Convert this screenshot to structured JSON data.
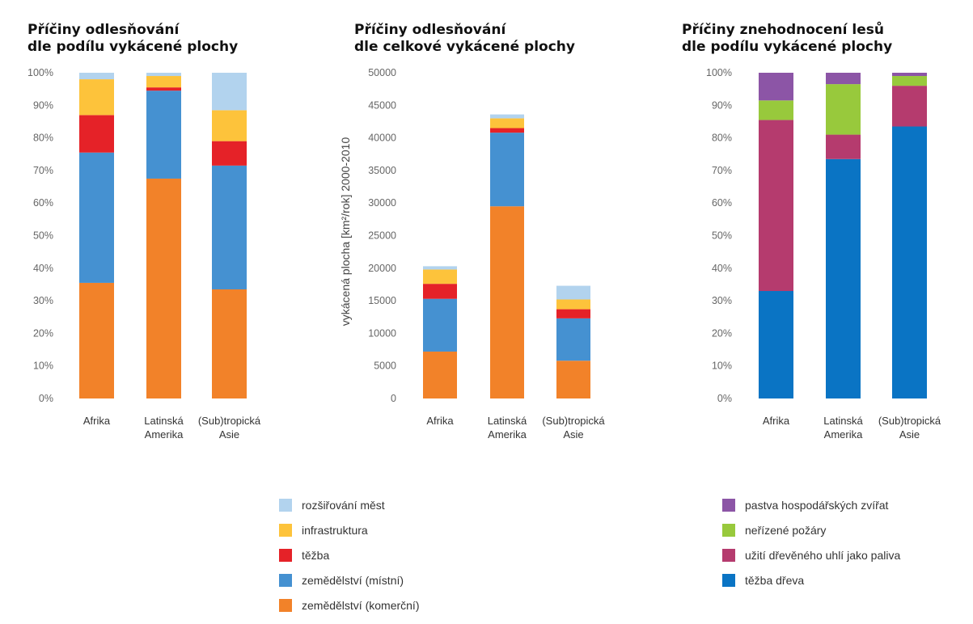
{
  "chart_data": [
    {
      "type": "bar",
      "stacked": true,
      "title": [
        "Příčiny odlesňování",
        "dle podílu vykácené plochy"
      ],
      "ylabel": "",
      "ylim": [
        0,
        100
      ],
      "yticks": [
        "0%",
        "10%",
        "20%",
        "30%",
        "40%",
        "50%",
        "60%",
        "70%",
        "80%",
        "90%",
        "100%"
      ],
      "categories": [
        [
          "Afrika"
        ],
        [
          "Latinská",
          "Amerika"
        ],
        [
          "(Sub)tropická",
          "Asie"
        ]
      ],
      "series": [
        {
          "name": "zemědělství (komerční)",
          "color": "#f28229",
          "values": [
            35.5,
            67.5,
            33.5
          ]
        },
        {
          "name": "zemědělství (místní)",
          "color": "#4591d1",
          "values": [
            40,
            27,
            38
          ]
        },
        {
          "name": "těžba",
          "color": "#e52228",
          "values": [
            11.5,
            1,
            7.5
          ]
        },
        {
          "name": "infrastruktura",
          "color": "#fdc33b",
          "values": [
            11,
            3.5,
            9.5
          ]
        },
        {
          "name": "rozšiřování měst",
          "color": "#b2d3ee",
          "values": [
            2,
            1,
            11.5
          ]
        }
      ]
    },
    {
      "type": "bar",
      "stacked": true,
      "title": [
        "Příčiny odlesňování",
        "dle celkové vykácené plochy"
      ],
      "ylabel": "vykácená plocha [km²/rok] 2000-2010",
      "ylim": [
        0,
        50000
      ],
      "yticks": [
        "0",
        "5000",
        "10000",
        "15000",
        "20000",
        "25000",
        "30000",
        "35000",
        "40000",
        "45000",
        "50000"
      ],
      "categories": [
        [
          "Afrika"
        ],
        [
          "Latinská",
          "Amerika"
        ],
        [
          "(Sub)tropická",
          "Asie"
        ]
      ],
      "series": [
        {
          "name": "zemědělství (komerční)",
          "color": "#f28229",
          "values": [
            7200,
            29500,
            5800
          ]
        },
        {
          "name": "zemědělství (místní)",
          "color": "#4591d1",
          "values": [
            8100,
            11300,
            6500
          ]
        },
        {
          "name": "těžba",
          "color": "#e52228",
          "values": [
            2300,
            700,
            1400
          ]
        },
        {
          "name": "infrastruktura",
          "color": "#fdc33b",
          "values": [
            2200,
            1500,
            1500
          ]
        },
        {
          "name": "rozšiřování měst",
          "color": "#b2d3ee",
          "values": [
            500,
            600,
            2100
          ]
        }
      ]
    },
    {
      "type": "bar",
      "stacked": true,
      "title": [
        "Příčiny znehodnocení lesů",
        "dle podílu vykácené plochy"
      ],
      "ylabel": "",
      "ylim": [
        0,
        100
      ],
      "yticks": [
        "0%",
        "10%",
        "20%",
        "30%",
        "40%",
        "50%",
        "60%",
        "70%",
        "80%",
        "90%",
        "100%"
      ],
      "categories": [
        [
          "Afrika"
        ],
        [
          "Latinská",
          "Amerika"
        ],
        [
          "(Sub)tropická",
          "Asie"
        ]
      ],
      "series": [
        {
          "name": "těžba dřeva",
          "color": "#0a74c4",
          "values": [
            33,
            73.5,
            83.5
          ]
        },
        {
          "name": "užití dřevěného uhlí jako paliva",
          "color": "#b53b6e",
          "values": [
            52.5,
            7.5,
            12.5
          ]
        },
        {
          "name": "neřízené požáry",
          "color": "#98c93c",
          "values": [
            6,
            15.5,
            3
          ]
        },
        {
          "name": "pastva hospodářských zvířat",
          "color": "#8c55a6",
          "values": [
            8.5,
            3.5,
            1
          ]
        }
      ]
    }
  ],
  "legends": {
    "deforestation": [
      {
        "label": "rozšiřování měst",
        "color": "#b2d3ee"
      },
      {
        "label": "infrastruktura",
        "color": "#fdc33b"
      },
      {
        "label": "těžba",
        "color": "#e52228"
      },
      {
        "label": "zemědělství (místní)",
        "color": "#4591d1"
      },
      {
        "label": "zemědělství (komerční)",
        "color": "#f28229"
      }
    ],
    "degradation": [
      {
        "label": "pastva hospodářských zvířat",
        "color": "#8c55a6"
      },
      {
        "label": "neřízené požáry",
        "color": "#98c93c"
      },
      {
        "label": "užití dřevěného uhlí jako paliva",
        "color": "#b53b6e"
      },
      {
        "label": "těžba dřeva",
        "color": "#0a74c4"
      }
    ]
  }
}
